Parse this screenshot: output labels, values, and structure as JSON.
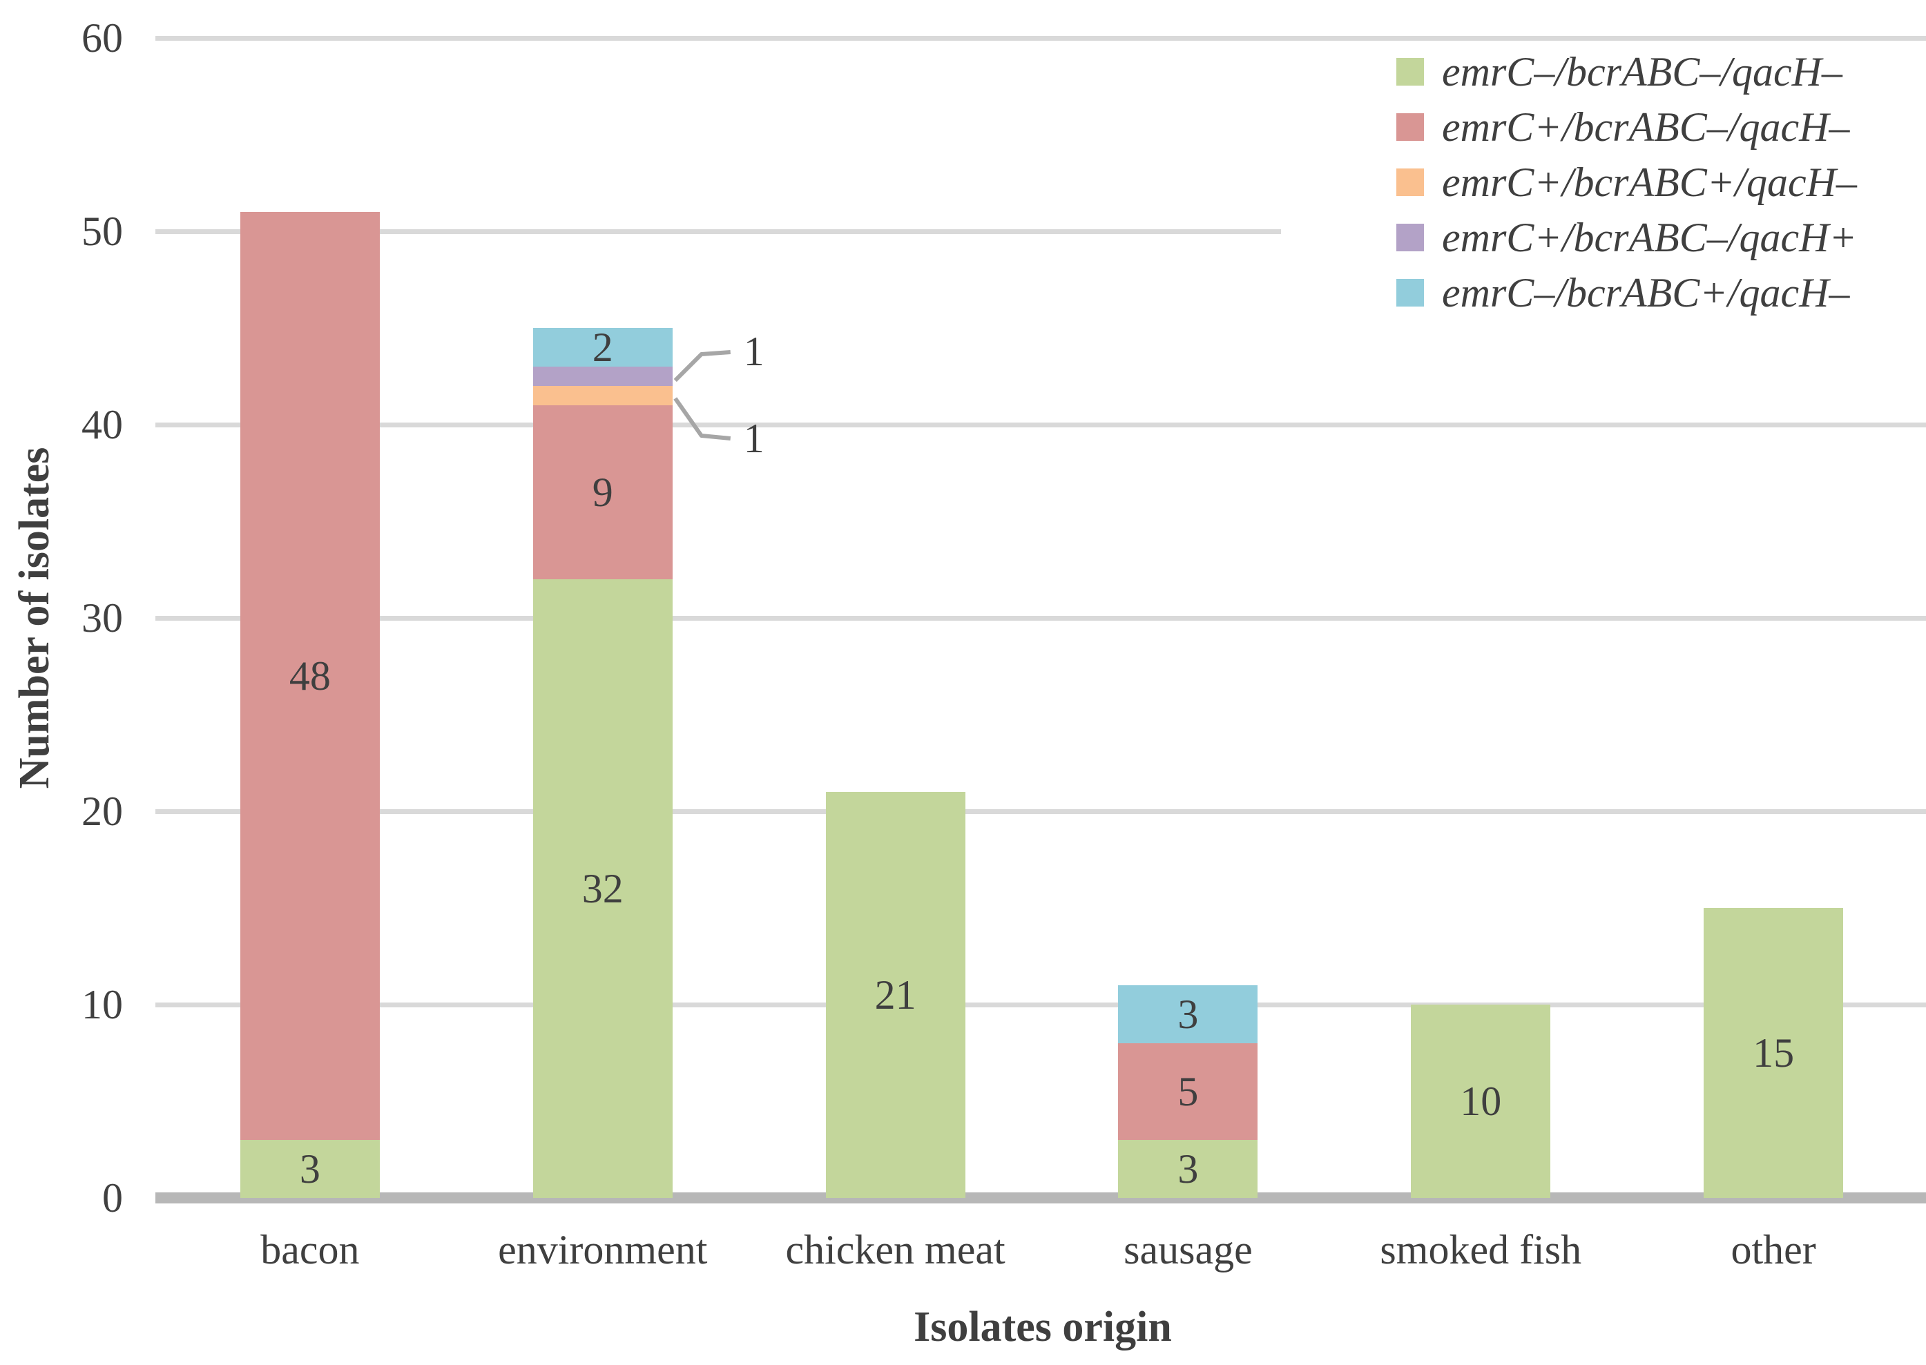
{
  "chart_data": {
    "type": "bar",
    "subtype": "stacked",
    "title": "",
    "xlabel": "Isolates origin",
    "ylabel": "Number of isolates",
    "ylim": [
      0,
      60
    ],
    "yticks": [
      0,
      10,
      20,
      30,
      40,
      50,
      60
    ],
    "grid": true,
    "legend_position": "top-right",
    "categories": [
      "bacon",
      "environment",
      "chicken meat",
      "sausage",
      "smoked fish",
      "other"
    ],
    "series": [
      {
        "name": "emrC–/bcrABC–/qacH–",
        "color": "#c3d69b",
        "values": [
          3,
          32,
          21,
          3,
          10,
          15
        ]
      },
      {
        "name": "emrC+/bcrABC–/qacH–",
        "color": "#d99694",
        "values": [
          48,
          9,
          0,
          5,
          0,
          0
        ]
      },
      {
        "name": "emrC+/bcrABC+/qacH–",
        "color": "#fac08f",
        "values": [
          0,
          1,
          0,
          0,
          0,
          0
        ]
      },
      {
        "name": "emrC+/bcrABC–/qacH+",
        "color": "#b3a2c7",
        "values": [
          0,
          1,
          0,
          0,
          0,
          0
        ]
      },
      {
        "name": "emrC–/bcrABC+/qacH–",
        "color": "#92cddc",
        "values": [
          0,
          2,
          0,
          3,
          0,
          0
        ]
      }
    ],
    "callouts": [
      {
        "category_index": 1,
        "series_index": 3,
        "label": "1",
        "direction": "up"
      },
      {
        "category_index": 1,
        "series_index": 2,
        "label": "1",
        "direction": "down"
      }
    ]
  },
  "colors": {
    "background": "#ffffff",
    "gridline": "#d9d9d9",
    "axis_line": "#b7b7b7",
    "text": "#3f3f3f",
    "tick_text": "#404040",
    "callout_line": "#a6a6a6"
  }
}
